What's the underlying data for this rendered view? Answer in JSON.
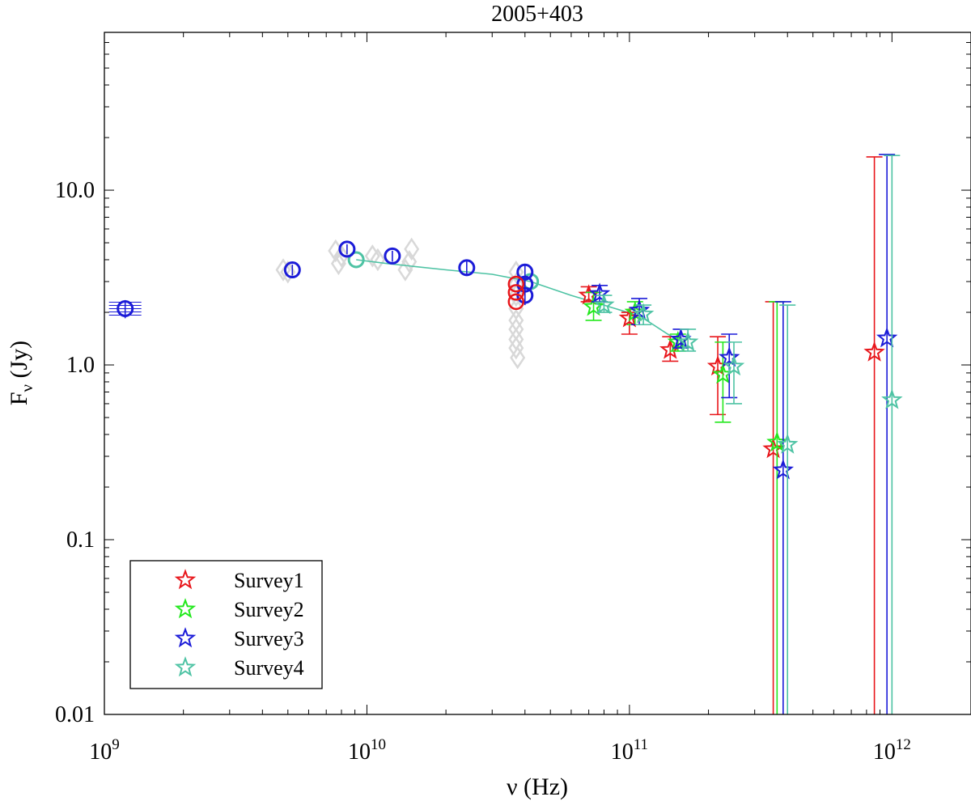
{
  "chart_data": {
    "type": "scatter",
    "title": "2005+403",
    "xlabel": "ν (Hz)",
    "ylabel_main": "F",
    "ylabel_sub": "ν",
    "ylabel_unit": " (Jy)",
    "x_scale": "log",
    "y_scale": "log",
    "xlim": [
      1000000000.0,
      2000000000000.0
    ],
    "ylim": [
      0.01,
      80
    ],
    "x_ticks": [
      {
        "value": 1000000000.0,
        "base": "10",
        "exp": "9"
      },
      {
        "value": 10000000000.0,
        "base": "10",
        "exp": "10"
      },
      {
        "value": 100000000000.0,
        "base": "10",
        "exp": "11"
      },
      {
        "value": 1000000000000.0,
        "base": "10",
        "exp": "12"
      }
    ],
    "y_ticks": [
      {
        "value": 0.01,
        "label": "0.01"
      },
      {
        "value": 0.1,
        "label": "0.1"
      },
      {
        "value": 1,
        "label": "1.0"
      },
      {
        "value": 10,
        "label": "10.0"
      }
    ],
    "legend_position": "bottom-left",
    "legend": [
      {
        "name": "Survey1",
        "color": "#e8161b"
      },
      {
        "name": "Survey2",
        "color": "#22e81c"
      },
      {
        "name": "Survey3",
        "color": "#1b1bd8"
      },
      {
        "name": "Survey4",
        "color": "#4ec3a4"
      }
    ],
    "archival_color": "#d8d8d8",
    "archival_points": [
      [
        4800000000.0,
        3.5
      ],
      [
        5000000000.0,
        3.4
      ],
      [
        7600000000.0,
        4.5
      ],
      [
        7800000000.0,
        3.8
      ],
      [
        8000000000.0,
        4.2
      ],
      [
        10500000000.0,
        4.2
      ],
      [
        11000000000.0,
        4.0
      ],
      [
        14000000000.0,
        3.5
      ],
      [
        14500000000.0,
        3.9
      ],
      [
        14800000000.0,
        4.6
      ],
      [
        37000000000.0,
        3.4
      ],
      [
        37000000000.0,
        2.9
      ],
      [
        37000000000.0,
        2.5
      ],
      [
        37000000000.0,
        2.1
      ],
      [
        37000000000.0,
        1.8
      ],
      [
        37000000000.0,
        1.6
      ],
      [
        37000000000.0,
        1.4
      ],
      [
        37000000000.0,
        1.25
      ],
      [
        37500000000.0,
        1.1
      ]
    ],
    "circle_color": "#1b1bd8",
    "circle_points": [
      {
        "x": 1200000000.0,
        "y": 2.1,
        "err": 0.25
      },
      {
        "x": 5200000000.0,
        "y": 3.5,
        "err": 0.25
      },
      {
        "x": 8400000000.0,
        "y": 4.6,
        "err": 0.3
      },
      {
        "x": 12500000000.0,
        "y": 4.2,
        "err": 0.3
      },
      {
        "x": 24000000000.0,
        "y": 3.6,
        "err": 0.3
      },
      {
        "x": 40000000000.0,
        "y": 3.4,
        "err": 0.3
      },
      {
        "x": 40000000000.0,
        "y": 2.9,
        "err": 0.3
      },
      {
        "x": 40000000000.0,
        "y": 2.5,
        "err": 0.3
      }
    ],
    "red_circles": [
      {
        "x": 37000000000.0,
        "y": 2.9
      },
      {
        "x": 37000000000.0,
        "y": 2.6
      },
      {
        "x": 37000000000.0,
        "y": 2.3
      }
    ],
    "model_color": "#4ec3a4",
    "model_line": [
      [
        9100000000.0,
        4.0
      ],
      [
        12000000000.0,
        3.8
      ],
      [
        20000000000.0,
        3.5
      ],
      [
        30000000000.0,
        3.3
      ],
      [
        42000000000.0,
        3.0
      ],
      [
        60000000000.0,
        2.5
      ],
      [
        80000000000.0,
        2.2
      ],
      [
        110000000000.0,
        1.9
      ],
      [
        140000000000.0,
        1.5
      ],
      [
        160000000000.0,
        1.35
      ]
    ],
    "model_markers": [
      {
        "x": 9100000000.0,
        "y": 4.0
      },
      {
        "x": 42000000000.0,
        "y": 3.0
      }
    ],
    "series": [
      {
        "name": "Survey1",
        "color": "#e8161b",
        "points": [
          {
            "x": 70000000000.0,
            "y": 2.5,
            "lo": 2.3,
            "hi": 2.8
          },
          {
            "x": 100000000000.0,
            "y": 1.85,
            "lo": 1.5,
            "hi": 2.0
          },
          {
            "x": 143000000000.0,
            "y": 1.22,
            "lo": 1.05,
            "hi": 1.45
          },
          {
            "x": 217000000000.0,
            "y": 0.98,
            "lo": 0.52,
            "hi": 1.45
          },
          {
            "x": 353000000000.0,
            "y": 0.33,
            "lo": 0.01,
            "hi": 2.3
          },
          {
            "x": 857000000000.0,
            "y": 1.18,
            "lo": 0.01,
            "hi": 15.5
          }
        ]
      },
      {
        "name": "Survey2",
        "color": "#22e81c",
        "points": [
          {
            "x": 73000000000.0,
            "y": 2.15,
            "lo": 1.8,
            "hi": 2.6
          },
          {
            "x": 105000000000.0,
            "y": 2.0,
            "lo": 1.7,
            "hi": 2.3
          },
          {
            "x": 153000000000.0,
            "y": 1.35,
            "lo": 1.2,
            "hi": 1.5
          },
          {
            "x": 227000000000.0,
            "y": 0.88,
            "lo": 0.47,
            "hi": 1.35
          },
          {
            "x": 365000000000.0,
            "y": 0.36,
            "lo": 0.01,
            "hi": 2.3
          }
        ]
      },
      {
        "name": "Survey3",
        "color": "#1b1bd8",
        "points": [
          {
            "x": 77000000000.0,
            "y": 2.55,
            "lo": 2.3,
            "hi": 2.85
          },
          {
            "x": 109000000000.0,
            "y": 2.05,
            "lo": 1.7,
            "hi": 2.4
          },
          {
            "x": 157000000000.0,
            "y": 1.4,
            "lo": 1.25,
            "hi": 1.6
          },
          {
            "x": 240000000000.0,
            "y": 1.1,
            "lo": 0.65,
            "hi": 1.5
          },
          {
            "x": 385000000000.0,
            "y": 0.25,
            "lo": 0.01,
            "hi": 2.3
          },
          {
            "x": 957000000000.0,
            "y": 1.42,
            "lo": 0.01,
            "hi": 16.0
          }
        ]
      },
      {
        "name": "Survey4",
        "color": "#4ec3a4",
        "points": [
          {
            "x": 80000000000.0,
            "y": 2.2,
            "lo": 2.0,
            "hi": 2.5
          },
          {
            "x": 113000000000.0,
            "y": 1.95,
            "lo": 1.7,
            "hi": 2.2
          },
          {
            "x": 167000000000.0,
            "y": 1.35,
            "lo": 1.2,
            "hi": 1.6
          },
          {
            "x": 250000000000.0,
            "y": 0.98,
            "lo": 0.6,
            "hi": 1.35
          },
          {
            "x": 400000000000.0,
            "y": 0.35,
            "lo": 0.01,
            "hi": 2.2
          },
          {
            "x": 1000000000000.0,
            "y": 0.63,
            "lo": 0.01,
            "hi": 15.8
          }
        ]
      }
    ]
  }
}
